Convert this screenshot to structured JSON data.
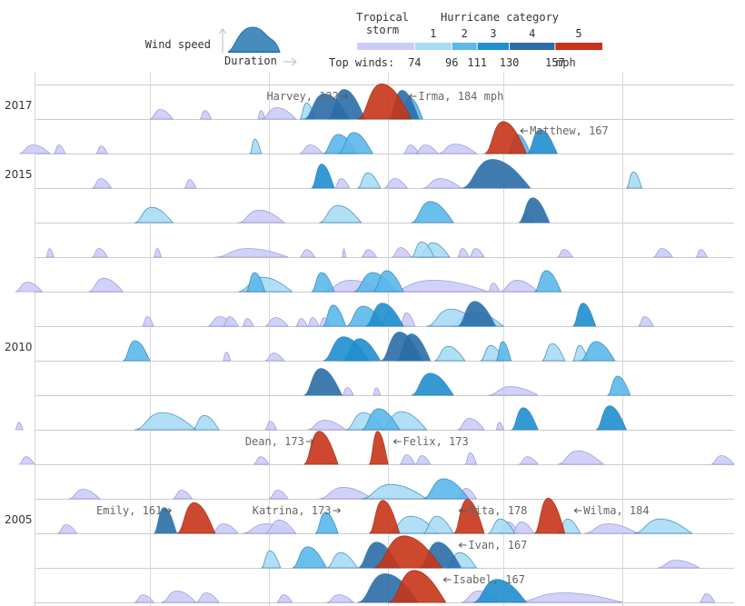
{
  "chart_data": {
    "type": "ridgeline",
    "title": "",
    "legend": {
      "wind_speed_label": "Wind speed",
      "duration_label": "Duration",
      "tropical_storm_label": [
        "Tropical",
        "storm"
      ],
      "hurricane_category_label": "Hurricane category",
      "category_numbers": [
        "1",
        "2",
        "3",
        "4",
        "5"
      ],
      "top_winds_label": "Top winds:",
      "threshold_ticks": [
        "74",
        "96",
        "111",
        "130",
        "157"
      ],
      "unit": "mph",
      "colors": [
        "#ccccf8",
        "#a8dbf5",
        "#5bb8ea",
        "#1f8fcf",
        "#2a6da6",
        "#c7351a"
      ]
    },
    "years_labeled": [
      {
        "year": "2017",
        "row": 0
      },
      {
        "year": "2015",
        "row": 2
      },
      {
        "year": "2010",
        "row": 7
      },
      {
        "year": "2005",
        "row": 12
      }
    ],
    "season_start_day": 152,
    "season_end_day": 334,
    "max_speed_mph": 190,
    "annotations": [
      {
        "text": "Harvey, 132",
        "row": 0,
        "day": 234,
        "side": "left"
      },
      {
        "text": "Irma, 184 mph",
        "row": 0,
        "day": 249,
        "side": "right"
      },
      {
        "text": "Matthew, 167",
        "row": 1,
        "day": 278,
        "side": "right"
      },
      {
        "text": "Dean, 173",
        "row": 10,
        "day": 225,
        "side": "left"
      },
      {
        "text": "Felix, 173",
        "row": 10,
        "day": 245,
        "side": "right"
      },
      {
        "text": "Emily, 161",
        "row": 12,
        "day": 188,
        "side": "left"
      },
      {
        "text": "Katrina, 173",
        "row": 12,
        "day": 232,
        "side": "left"
      },
      {
        "text": "Rita, 178",
        "row": 12,
        "day": 262,
        "side": "right"
      },
      {
        "text": "Wilma, 184",
        "row": 12,
        "day": 292,
        "side": "right"
      },
      {
        "text": "Ivan, 167",
        "row": 13,
        "day": 262,
        "side": "right"
      },
      {
        "text": "Isabel, 167",
        "row": 14,
        "day": 258,
        "side": "right"
      }
    ],
    "storms": [
      {
        "row": 0,
        "start": 182,
        "dur": 6,
        "peak": 50
      },
      {
        "row": 0,
        "start": 195,
        "dur": 3,
        "peak": 45
      },
      {
        "row": 0,
        "start": 210,
        "dur": 2,
        "peak": 45
      },
      {
        "row": 0,
        "start": 211,
        "dur": 9,
        "peak": 60
      },
      {
        "row": 0,
        "start": 221,
        "dur": 4,
        "peak": 85
      },
      {
        "row": 0,
        "start": 222,
        "dur": 12,
        "peak": 132
      },
      {
        "row": 0,
        "start": 228,
        "dur": 10,
        "peak": 155
      },
      {
        "row": 0,
        "start": 236,
        "dur": 14,
        "peak": 184
      },
      {
        "row": 0,
        "start": 244,
        "dur": 8,
        "peak": 150
      },
      {
        "row": 0,
        "start": 247,
        "dur": 6,
        "peak": 110
      },
      {
        "row": 1,
        "start": 148,
        "dur": 8,
        "peak": 45
      },
      {
        "row": 1,
        "start": 157,
        "dur": 3,
        "peak": 45
      },
      {
        "row": 1,
        "start": 168,
        "dur": 3,
        "peak": 40
      },
      {
        "row": 1,
        "start": 208,
        "dur": 3,
        "peak": 75
      },
      {
        "row": 1,
        "start": 221,
        "dur": 6,
        "peak": 45
      },
      {
        "row": 1,
        "start": 227,
        "dur": 9,
        "peak": 100
      },
      {
        "row": 1,
        "start": 231,
        "dur": 9,
        "peak": 110
      },
      {
        "row": 1,
        "start": 248,
        "dur": 4,
        "peak": 45
      },
      {
        "row": 1,
        "start": 251,
        "dur": 6,
        "peak": 45
      },
      {
        "row": 1,
        "start": 257,
        "dur": 10,
        "peak": 50
      },
      {
        "row": 1,
        "start": 269,
        "dur": 11,
        "peak": 167
      },
      {
        "row": 1,
        "start": 275,
        "dur": 6,
        "peak": 100
      },
      {
        "row": 1,
        "start": 280,
        "dur": 8,
        "peak": 125
      },
      {
        "row": 2,
        "start": 167,
        "dur": 5,
        "peak": 50
      },
      {
        "row": 2,
        "start": 191,
        "dur": 3,
        "peak": 45
      },
      {
        "row": 2,
        "start": 224,
        "dur": 6,
        "peak": 125
      },
      {
        "row": 2,
        "start": 230,
        "dur": 4,
        "peak": 50
      },
      {
        "row": 2,
        "start": 236,
        "dur": 6,
        "peak": 80
      },
      {
        "row": 2,
        "start": 243,
        "dur": 6,
        "peak": 50
      },
      {
        "row": 2,
        "start": 253,
        "dur": 10,
        "peak": 50
      },
      {
        "row": 2,
        "start": 263,
        "dur": 18,
        "peak": 150
      },
      {
        "row": 2,
        "start": 306,
        "dur": 4,
        "peak": 85
      },
      {
        "row": 3,
        "start": 178,
        "dur": 10,
        "peak": 80
      },
      {
        "row": 3,
        "start": 205,
        "dur": 12,
        "peak": 65
      },
      {
        "row": 3,
        "start": 226,
        "dur": 11,
        "peak": 90
      },
      {
        "row": 3,
        "start": 250,
        "dur": 11,
        "peak": 110
      },
      {
        "row": 3,
        "start": 278,
        "dur": 4,
        "peak": 50
      },
      {
        "row": 3,
        "start": 278,
        "dur": 8,
        "peak": 130
      },
      {
        "row": 4,
        "start": 155,
        "dur": 2,
        "peak": 45
      },
      {
        "row": 4,
        "start": 167,
        "dur": 4,
        "peak": 45
      },
      {
        "row": 4,
        "start": 183,
        "dur": 2,
        "peak": 45
      },
      {
        "row": 4,
        "start": 199,
        "dur": 19,
        "peak": 45
      },
      {
        "row": 4,
        "start": 221,
        "dur": 4,
        "peak": 40
      },
      {
        "row": 4,
        "start": 232,
        "dur": 1,
        "peak": 45
      },
      {
        "row": 4,
        "start": 237,
        "dur": 4,
        "peak": 40
      },
      {
        "row": 4,
        "start": 245,
        "dur": 5,
        "peak": 50
      },
      {
        "row": 4,
        "start": 250,
        "dur": 6,
        "peak": 80
      },
      {
        "row": 4,
        "start": 252,
        "dur": 8,
        "peak": 75
      },
      {
        "row": 4,
        "start": 262,
        "dur": 3,
        "peak": 45
      },
      {
        "row": 4,
        "start": 265,
        "dur": 4,
        "peak": 45
      },
      {
        "row": 4,
        "start": 288,
        "dur": 4,
        "peak": 40
      },
      {
        "row": 4,
        "start": 313,
        "dur": 5,
        "peak": 45
      },
      {
        "row": 4,
        "start": 324,
        "dur": 3,
        "peak": 40
      },
      {
        "row": 5,
        "start": 147,
        "dur": 7,
        "peak": 50
      },
      {
        "row": 5,
        "start": 166,
        "dur": 9,
        "peak": 70
      },
      {
        "row": 5,
        "start": 205,
        "dur": 14,
        "peak": 75
      },
      {
        "row": 5,
        "start": 207,
        "dur": 5,
        "peak": 100
      },
      {
        "row": 5,
        "start": 224,
        "dur": 6,
        "peak": 100
      },
      {
        "row": 5,
        "start": 227,
        "dur": 16,
        "peak": 60
      },
      {
        "row": 5,
        "start": 235,
        "dur": 11,
        "peak": 100
      },
      {
        "row": 5,
        "start": 240,
        "dur": 8,
        "peak": 110
      },
      {
        "row": 5,
        "start": 244,
        "dur": 26,
        "peak": 60
      },
      {
        "row": 5,
        "start": 270,
        "dur": 3,
        "peak": 45
      },
      {
        "row": 5,
        "start": 273,
        "dur": 10,
        "peak": 60
      },
      {
        "row": 5,
        "start": 282,
        "dur": 7,
        "peak": 110
      },
      {
        "row": 6,
        "start": 180,
        "dur": 3,
        "peak": 50
      },
      {
        "row": 6,
        "start": 197,
        "dur": 7,
        "peak": 50
      },
      {
        "row": 6,
        "start": 201,
        "dur": 4,
        "peak": 50
      },
      {
        "row": 6,
        "start": 206,
        "dur": 3,
        "peak": 40
      },
      {
        "row": 6,
        "start": 212,
        "dur": 6,
        "peak": 45
      },
      {
        "row": 6,
        "start": 220,
        "dur": 3,
        "peak": 40
      },
      {
        "row": 6,
        "start": 223,
        "dur": 3,
        "peak": 45
      },
      {
        "row": 6,
        "start": 226,
        "dur": 3,
        "peak": 45
      },
      {
        "row": 6,
        "start": 227,
        "dur": 6,
        "peak": 110
      },
      {
        "row": 6,
        "start": 233,
        "dur": 10,
        "peak": 105
      },
      {
        "row": 6,
        "start": 238,
        "dur": 10,
        "peak": 120
      },
      {
        "row": 6,
        "start": 242,
        "dur": 5,
        "peak": 75
      },
      {
        "row": 6,
        "start": 247,
        "dur": 4,
        "peak": 70
      },
      {
        "row": 6,
        "start": 254,
        "dur": 14,
        "peak": 90
      },
      {
        "row": 6,
        "start": 260,
        "dur": 14,
        "peak": 75
      },
      {
        "row": 6,
        "start": 262,
        "dur": 10,
        "peak": 130
      },
      {
        "row": 6,
        "start": 292,
        "dur": 6,
        "peak": 120
      },
      {
        "row": 6,
        "start": 309,
        "dur": 4,
        "peak": 50
      },
      {
        "row": 7,
        "start": 175,
        "dur": 7,
        "peak": 105
      },
      {
        "row": 7,
        "start": 201,
        "dur": 2,
        "peak": 45
      },
      {
        "row": 7,
        "start": 212,
        "dur": 5,
        "peak": 40
      },
      {
        "row": 7,
        "start": 227,
        "dur": 12,
        "peak": 125
      },
      {
        "row": 7,
        "start": 232,
        "dur": 10,
        "peak": 115
      },
      {
        "row": 7,
        "start": 242,
        "dur": 11,
        "peak": 150
      },
      {
        "row": 7,
        "start": 246,
        "dur": 9,
        "peak": 140
      },
      {
        "row": 7,
        "start": 256,
        "dur": 8,
        "peak": 75
      },
      {
        "row": 7,
        "start": 268,
        "dur": 6,
        "peak": 80
      },
      {
        "row": 7,
        "start": 272,
        "dur": 4,
        "peak": 100
      },
      {
        "row": 7,
        "start": 284,
        "dur": 6,
        "peak": 90
      },
      {
        "row": 7,
        "start": 292,
        "dur": 4,
        "peak": 80
      },
      {
        "row": 7,
        "start": 294,
        "dur": 9,
        "peak": 100
      },
      {
        "row": 8,
        "start": 222,
        "dur": 10,
        "peak": 140
      },
      {
        "row": 8,
        "start": 232,
        "dur": 3,
        "peak": 40
      },
      {
        "row": 8,
        "start": 240,
        "dur": 2,
        "peak": 40
      },
      {
        "row": 8,
        "start": 250,
        "dur": 11,
        "peak": 115
      },
      {
        "row": 8,
        "start": 270,
        "dur": 13,
        "peak": 45
      },
      {
        "row": 8,
        "start": 301,
        "dur": 6,
        "peak": 100
      },
      {
        "row": 9,
        "start": 147,
        "dur": 2,
        "peak": 40
      },
      {
        "row": 9,
        "start": 178,
        "dur": 16,
        "peak": 90
      },
      {
        "row": 9,
        "start": 193,
        "dur": 7,
        "peak": 75
      },
      {
        "row": 9,
        "start": 212,
        "dur": 3,
        "peak": 45
      },
      {
        "row": 9,
        "start": 223,
        "dur": 10,
        "peak": 50
      },
      {
        "row": 9,
        "start": 233,
        "dur": 10,
        "peak": 90
      },
      {
        "row": 9,
        "start": 237,
        "dur": 10,
        "peak": 110
      },
      {
        "row": 9,
        "start": 242,
        "dur": 12,
        "peak": 95
      },
      {
        "row": 9,
        "start": 262,
        "dur": 7,
        "peak": 60
      },
      {
        "row": 9,
        "start": 272,
        "dur": 2,
        "peak": 40
      },
      {
        "row": 9,
        "start": 276,
        "dur": 7,
        "peak": 115
      },
      {
        "row": 9,
        "start": 298,
        "dur": 8,
        "peak": 125
      },
      {
        "row": 10,
        "start": 148,
        "dur": 4,
        "peak": 40
      },
      {
        "row": 10,
        "start": 209,
        "dur": 4,
        "peak": 40
      },
      {
        "row": 10,
        "start": 222,
        "dur": 9,
        "peak": 173
      },
      {
        "row": 10,
        "start": 239,
        "dur": 5,
        "peak": 173
      },
      {
        "row": 10,
        "start": 247,
        "dur": 4,
        "peak": 50
      },
      {
        "row": 10,
        "start": 251,
        "dur": 4,
        "peak": 45
      },
      {
        "row": 10,
        "start": 264,
        "dur": 3,
        "peak": 60
      },
      {
        "row": 10,
        "start": 278,
        "dur": 5,
        "peak": 40
      },
      {
        "row": 10,
        "start": 288,
        "dur": 12,
        "peak": 70
      },
      {
        "row": 10,
        "start": 328,
        "dur": 6,
        "peak": 45
      },
      {
        "row": 11,
        "start": 161,
        "dur": 8,
        "peak": 50
      },
      {
        "row": 11,
        "start": 188,
        "dur": 5,
        "peak": 45
      },
      {
        "row": 11,
        "start": 213,
        "dur": 5,
        "peak": 45
      },
      {
        "row": 11,
        "start": 226,
        "dur": 14,
        "peak": 60
      },
      {
        "row": 11,
        "start": 237,
        "dur": 17,
        "peak": 75
      },
      {
        "row": 11,
        "start": 253,
        "dur": 12,
        "peak": 105
      },
      {
        "row": 11,
        "start": 262,
        "dur": 5,
        "peak": 55
      },
      {
        "row": 12,
        "start": 158,
        "dur": 5,
        "peak": 45
      },
      {
        "row": 12,
        "start": 183,
        "dur": 6,
        "peak": 135
      },
      {
        "row": 12,
        "start": 189,
        "dur": 10,
        "peak": 161
      },
      {
        "row": 12,
        "start": 198,
        "dur": 7,
        "peak": 50
      },
      {
        "row": 12,
        "start": 206,
        "dur": 14,
        "peak": 50
      },
      {
        "row": 12,
        "start": 212,
        "dur": 8,
        "peak": 70
      },
      {
        "row": 12,
        "start": 225,
        "dur": 6,
        "peak": 110
      },
      {
        "row": 12,
        "start": 239,
        "dur": 8,
        "peak": 173
      },
      {
        "row": 12,
        "start": 244,
        "dur": 13,
        "peak": 90
      },
      {
        "row": 12,
        "start": 253,
        "dur": 8,
        "peak": 90
      },
      {
        "row": 12,
        "start": 261,
        "dur": 8,
        "peak": 178
      },
      {
        "row": 12,
        "start": 270,
        "dur": 7,
        "peak": 75
      },
      {
        "row": 12,
        "start": 273,
        "dur": 5,
        "peak": 60
      },
      {
        "row": 12,
        "start": 276,
        "dur": 6,
        "peak": 60
      },
      {
        "row": 12,
        "start": 282,
        "dur": 8,
        "peak": 184
      },
      {
        "row": 12,
        "start": 288,
        "dur": 6,
        "peak": 75
      },
      {
        "row": 12,
        "start": 295,
        "dur": 14,
        "peak": 50
      },
      {
        "row": 12,
        "start": 308,
        "dur": 15,
        "peak": 75
      },
      {
        "row": 13,
        "start": 211,
        "dur": 5,
        "peak": 90
      },
      {
        "row": 13,
        "start": 219,
        "dur": 9,
        "peak": 110
      },
      {
        "row": 13,
        "start": 228,
        "dur": 8,
        "peak": 80
      },
      {
        "row": 13,
        "start": 236,
        "dur": 11,
        "peak": 135
      },
      {
        "row": 13,
        "start": 240,
        "dur": 18,
        "peak": 167
      },
      {
        "row": 13,
        "start": 252,
        "dur": 11,
        "peak": 135
      },
      {
        "row": 13,
        "start": 259,
        "dur": 8,
        "peak": 80
      },
      {
        "row": 13,
        "start": 314,
        "dur": 11,
        "peak": 40
      },
      {
        "row": 14,
        "start": 178,
        "dur": 5,
        "peak": 40
      },
      {
        "row": 14,
        "start": 185,
        "dur": 9,
        "peak": 60
      },
      {
        "row": 14,
        "start": 194,
        "dur": 6,
        "peak": 50
      },
      {
        "row": 14,
        "start": 215,
        "dur": 4,
        "peak": 40
      },
      {
        "row": 14,
        "start": 228,
        "dur": 7,
        "peak": 40
      },
      {
        "row": 14,
        "start": 236,
        "dur": 16,
        "peak": 150
      },
      {
        "row": 14,
        "start": 244,
        "dur": 15,
        "peak": 167
      },
      {
        "row": 14,
        "start": 263,
        "dur": 10,
        "peak": 60
      },
      {
        "row": 14,
        "start": 266,
        "dur": 14,
        "peak": 120
      },
      {
        "row": 14,
        "start": 277,
        "dur": 28,
        "peak": 50
      },
      {
        "row": 14,
        "start": 325,
        "dur": 4,
        "peak": 45
      }
    ]
  }
}
